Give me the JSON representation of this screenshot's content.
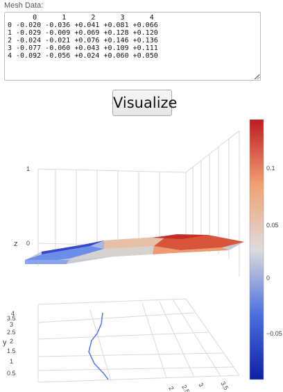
{
  "mesh": {
    "label": "Mesh Data:",
    "text": "      0      1      2      3      4\n0 -0.020 -0.036 +0.041 +0.081 +0.066\n1 -0.029 -0.009 +0.069 +0.128 +0.120\n2 -0.024 -0.021 +0.076 +0.146 +0.136\n3 -0.077 -0.060 +0.043 +0.109 +0.111\n4 -0.092 -0.056 +0.024 +0.060 +0.050"
  },
  "visualize_label": "Visualize",
  "chart_data": {
    "type": "surface",
    "z": [
      [
        -0.02,
        -0.036,
        0.041,
        0.081,
        0.066
      ],
      [
        -0.029,
        -0.009,
        0.069,
        0.128,
        0.12
      ],
      [
        -0.024,
        -0.021,
        0.076,
        0.146,
        0.136
      ],
      [
        -0.077,
        -0.06,
        0.043,
        0.109,
        0.111
      ],
      [
        -0.092,
        -0.056,
        0.024,
        0.06,
        0.05
      ]
    ],
    "axes": {
      "x_title": "",
      "y_title": "y",
      "z_title": "z",
      "x_ticks": [
        "2",
        "2.5",
        "3",
        "3.5"
      ],
      "y_ticks": [
        "0.5",
        "1",
        "1.5",
        "2",
        "2.5",
        "3",
        "3.5",
        "4"
      ],
      "z_ticks": [
        "0",
        "1"
      ]
    },
    "colorbar": {
      "ticks": [
        "0.1",
        "0.05",
        "0",
        "−0.05"
      ],
      "tick_values": [
        0.1,
        0.05,
        0,
        -0.05
      ],
      "range": [
        -0.095,
        0.148
      ],
      "colors": [
        "#0f1fa6",
        "#4a70e0",
        "#dcdcdc",
        "#f2a072",
        "#c01a23"
      ]
    }
  }
}
